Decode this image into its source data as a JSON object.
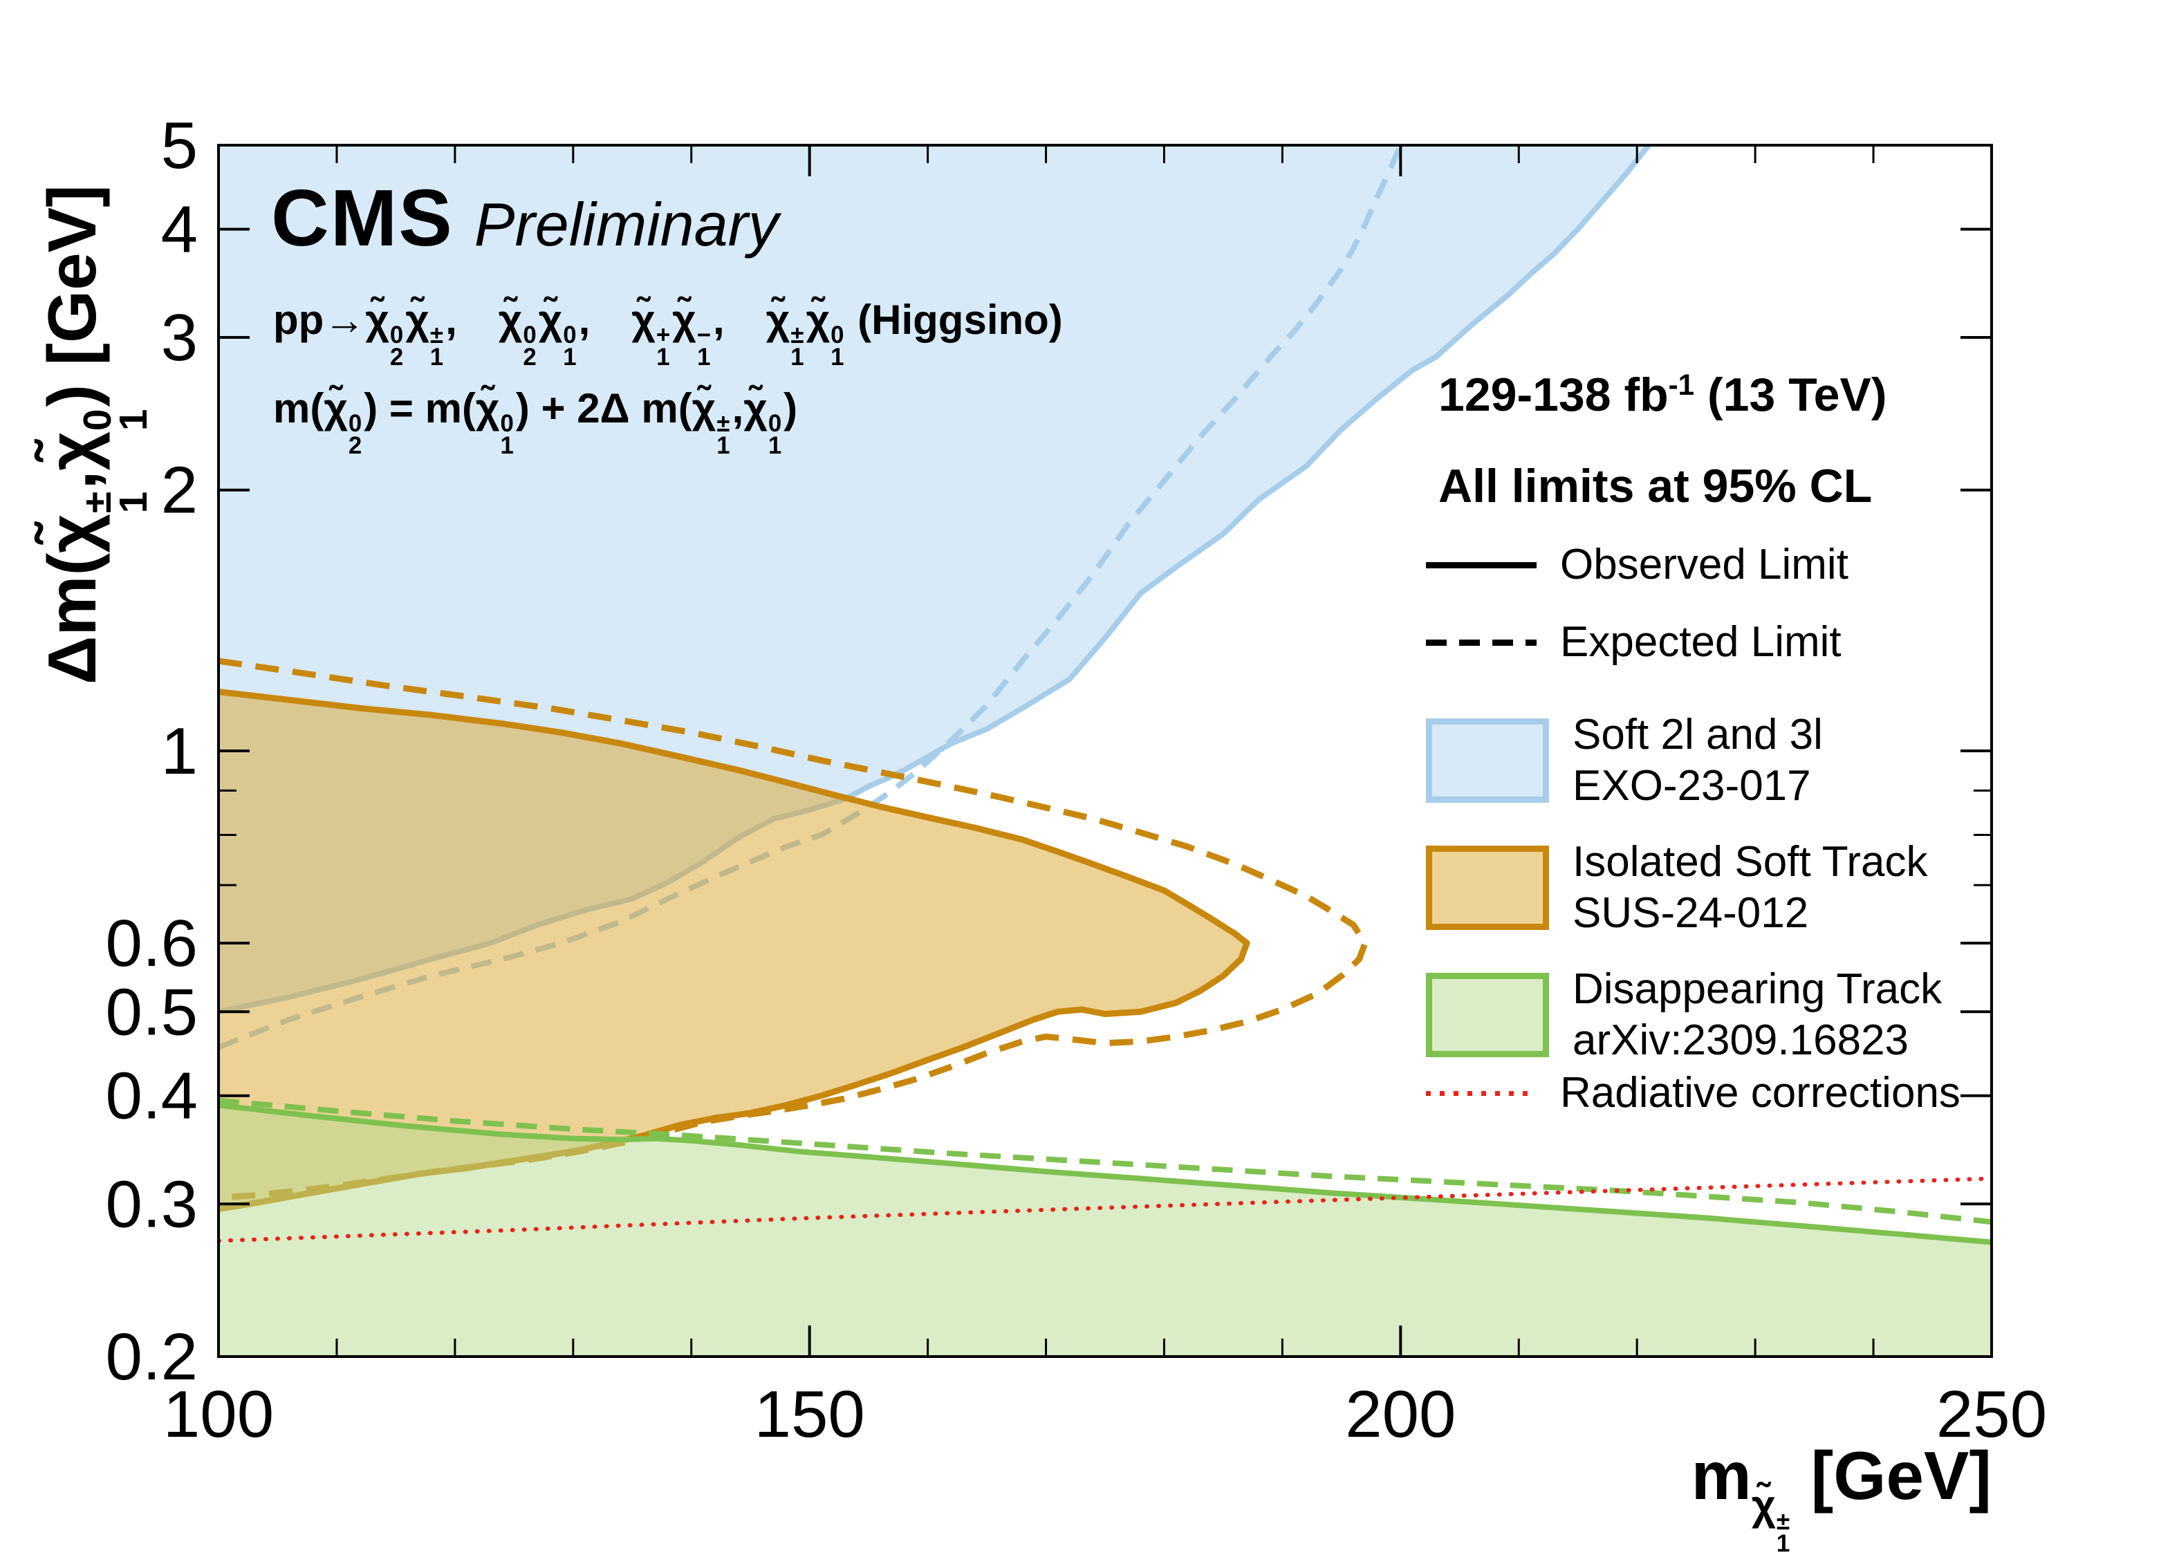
{
  "header": {
    "experiment": "CMS",
    "status": "Preliminary"
  },
  "annotations": {
    "process_html": "pp→χ̃<span class='ss'><span>0</span><span>2</span></span>χ̃<span class='ss'><span>±</span><span>1</span></span>,&#8194;&#8194;χ̃<span class='ss'><span>0</span><span>2</span></span>χ̃<span class='ss'><span>0</span><span>1</span></span>,&#8194;&#8194;χ̃<span class='ss'><span>+</span><span>1</span></span>χ̃<span class='ss'><span>−</span><span>1</span></span>,&#8194;&#8194;χ̃<span class='ss'><span>±</span><span>1</span></span>χ̃<span class='ss'><span>0</span><span>1</span></span> (Higgsino)",
    "mass_relation_html": "m(χ̃<span class='ss'><span>0</span><span>2</span></span>) = m(χ̃<span class='ss'><span>0</span><span>1</span></span>) + 2Δ m(χ̃<span class='ss'><span>±</span><span>1</span></span>,χ̃<span class='ss'><span>0</span><span>1</span></span>)",
    "lumi_html": "129-138 fb<sup>-1</sup> (13 TeV)",
    "cl_text": "All limits at 95% CL"
  },
  "axes": {
    "x_title_html": "m<span class='subg'>χ̃<span class='ss'><span>±</span><span>1</span></span></span> [GeV]",
    "y_title_html": "Δm(χ̃<span class='ss'><span>±</span><span>1</span></span>,χ̃<span class='ss'><span>0</span><span>1</span></span>) [GeV]"
  },
  "legend": {
    "observed_label": "Observed Limit",
    "expected_label": "Expected Limit",
    "entries": [
      {
        "line1": "Soft 2l and 3l",
        "line2": "EXO-23-017",
        "fill": "#d8eaf8",
        "border": "#a6cde9"
      },
      {
        "line1": "Isolated Soft Track",
        "line2": "SUS-24-012",
        "fill": "#edd296",
        "border": "#c8870d"
      },
      {
        "line1": "Disappearing Track",
        "line2": "arXiv:2309.16823",
        "fill": "#daedc6",
        "border": "#7ec14f"
      }
    ],
    "radiative_label": "Radiative corrections",
    "radiative_color": "#e8231a"
  },
  "chart_data": {
    "type": "area",
    "title": "CMS Preliminary  Higgsino exclusion limits",
    "xlabel": "m(chargino_1) [GeV]",
    "ylabel": "Delta m(chargino_1, neutralino_1) [GeV]",
    "x_range": [
      100,
      250
    ],
    "y_range": [
      0.2,
      5
    ],
    "y_scale": "log",
    "grid": false,
    "legend_position": "right",
    "x_ticks": [
      {
        "v": 100,
        "label": "100"
      },
      {
        "v": 150,
        "label": "150"
      },
      {
        "v": 200,
        "label": "200"
      },
      {
        "v": 250,
        "label": "250"
      }
    ],
    "x_minor_ticks": [
      110,
      120,
      130,
      140,
      160,
      170,
      180,
      190,
      210,
      220,
      230,
      240
    ],
    "y_ticks": [
      {
        "v": 5,
        "label": "5"
      },
      {
        "v": 4,
        "label": "4"
      },
      {
        "v": 3,
        "label": "3"
      },
      {
        "v": 2,
        "label": "2"
      },
      {
        "v": 1,
        "label": "1"
      },
      {
        "v": 0.6,
        "label": "0.6"
      },
      {
        "v": 0.5,
        "label": "0.5"
      },
      {
        "v": 0.4,
        "label": "0.4"
      },
      {
        "v": 0.3,
        "label": "0.3"
      },
      {
        "v": 0.2,
        "label": "0.2"
      }
    ],
    "y_minor_ticks": [
      0.7,
      0.8,
      0.9
    ],
    "series": [
      {
        "name": "soft-2l-3l-observed",
        "analysis": "Soft 2l and 3l (EXO-23-017)",
        "role": "observed",
        "color": "#a6cde9",
        "width": 8,
        "dash": null,
        "fill": {
          "color": "#d8eaf8",
          "opacity": 1,
          "close": [
            [
              100,
              5
            ]
          ]
        },
        "points": [
          [
            100,
            0.5
          ],
          [
            106,
            0.52
          ],
          [
            112,
            0.545
          ],
          [
            118,
            0.575
          ],
          [
            123,
            0.6
          ],
          [
            127,
            0.63
          ],
          [
            131,
            0.655
          ],
          [
            135,
            0.675
          ],
          [
            138,
            0.705
          ],
          [
            141,
            0.745
          ],
          [
            144,
            0.795
          ],
          [
            147,
            0.835
          ],
          [
            150,
            0.855
          ],
          [
            153,
            0.88
          ],
          [
            155,
            0.91
          ],
          [
            157,
            0.935
          ],
          [
            158,
            0.95
          ],
          [
            162,
            1.02
          ],
          [
            165,
            1.06
          ],
          [
            168,
            1.12
          ],
          [
            172,
            1.21
          ],
          [
            175,
            1.35
          ],
          [
            178,
            1.52
          ],
          [
            181,
            1.63
          ],
          [
            185,
            1.78
          ],
          [
            188,
            1.95
          ],
          [
            192,
            2.13
          ],
          [
            195,
            2.35
          ],
          [
            198,
            2.55
          ],
          [
            201,
            2.75
          ],
          [
            203,
            2.85
          ],
          [
            206,
            3.1
          ],
          [
            209,
            3.35
          ],
          [
            211,
            3.55
          ],
          [
            213,
            3.75
          ],
          [
            215,
            4.0
          ],
          [
            217,
            4.3
          ],
          [
            219,
            4.62
          ],
          [
            221,
            5.0
          ]
        ]
      },
      {
        "name": "soft-2l-3l-expected",
        "analysis": "Soft 2l and 3l (EXO-23-017)",
        "role": "expected",
        "color": "#a6cde9",
        "width": 8,
        "dash": "30 18",
        "fill": null,
        "points": [
          [
            100,
            0.455
          ],
          [
            106,
            0.49
          ],
          [
            112,
            0.52
          ],
          [
            118,
            0.55
          ],
          [
            124,
            0.575
          ],
          [
            129,
            0.6
          ],
          [
            134,
            0.635
          ],
          [
            138,
            0.675
          ],
          [
            142,
            0.715
          ],
          [
            145,
            0.745
          ],
          [
            148,
            0.775
          ],
          [
            151,
            0.8
          ],
          [
            153,
            0.83
          ],
          [
            155,
            0.862
          ],
          [
            157,
            0.9
          ],
          [
            159,
            0.945
          ],
          [
            161,
            1.0
          ],
          [
            163,
            1.06
          ],
          [
            165,
            1.13
          ],
          [
            168,
            1.27
          ],
          [
            171,
            1.42
          ],
          [
            174,
            1.6
          ],
          [
            177,
            1.83
          ],
          [
            180,
            2.05
          ],
          [
            183,
            2.3
          ],
          [
            186,
            2.55
          ],
          [
            189,
            2.85
          ],
          [
            191,
            3.05
          ],
          [
            193,
            3.3
          ],
          [
            195,
            3.6
          ],
          [
            196,
            3.8
          ],
          [
            197,
            4.05
          ],
          [
            198,
            4.35
          ],
          [
            199,
            4.65
          ],
          [
            200,
            5.0
          ]
        ]
      },
      {
        "name": "isolated-soft-track-observed",
        "analysis": "Isolated Soft Track (SUS-24-012)",
        "role": "observed",
        "color": "#c8870d",
        "width": 9,
        "dash": null,
        "fill": {
          "color": "#dca62e",
          "opacity": 0.5,
          "close": []
        },
        "points": [
          [
            100,
            1.17
          ],
          [
            106,
            1.145
          ],
          [
            112,
            1.12
          ],
          [
            118,
            1.1
          ],
          [
            124,
            1.075
          ],
          [
            129,
            1.05
          ],
          [
            134,
            1.02
          ],
          [
            139,
            0.985
          ],
          [
            144,
            0.95
          ],
          [
            148,
            0.92
          ],
          [
            152,
            0.89
          ],
          [
            156,
            0.862
          ],
          [
            160,
            0.838
          ],
          [
            164,
            0.815
          ],
          [
            168,
            0.79
          ],
          [
            171,
            0.765
          ],
          [
            174,
            0.74
          ],
          [
            177,
            0.715
          ],
          [
            180,
            0.69
          ],
          [
            182,
            0.665
          ],
          [
            184,
            0.64
          ],
          [
            186,
            0.615
          ],
          [
            187,
            0.6
          ],
          [
            186.5,
            0.575
          ],
          [
            185,
            0.55
          ],
          [
            183,
            0.528
          ],
          [
            181,
            0.512
          ],
          [
            178,
            0.5
          ],
          [
            175,
            0.497
          ],
          [
            173,
            0.503
          ],
          [
            171,
            0.5
          ],
          [
            169,
            0.49
          ],
          [
            166,
            0.472
          ],
          [
            163,
            0.455
          ],
          [
            160,
            0.44
          ],
          [
            157,
            0.425
          ],
          [
            154,
            0.412
          ],
          [
            151,
            0.4
          ],
          [
            148,
            0.39
          ],
          [
            145,
            0.382
          ],
          [
            142,
            0.377
          ],
          [
            139,
            0.37
          ],
          [
            136,
            0.36
          ],
          [
            133,
            0.352
          ],
          [
            130,
            0.345
          ],
          [
            127,
            0.34
          ],
          [
            124,
            0.335
          ],
          [
            121,
            0.33
          ],
          [
            117,
            0.325
          ],
          [
            113,
            0.318
          ],
          [
            109,
            0.311
          ],
          [
            105,
            0.304
          ],
          [
            102,
            0.299
          ],
          [
            100,
            0.296
          ]
        ]
      },
      {
        "name": "isolated-soft-track-expected",
        "analysis": "Isolated Soft Track (SUS-24-012)",
        "role": "expected",
        "color": "#c8870d",
        "width": 9,
        "dash": "34 20",
        "fill": null,
        "points": [
          [
            100,
            1.27
          ],
          [
            107,
            1.23
          ],
          [
            114,
            1.19
          ],
          [
            121,
            1.155
          ],
          [
            128,
            1.12
          ],
          [
            134,
            1.085
          ],
          [
            140,
            1.05
          ],
          [
            146,
            1.01
          ],
          [
            151,
            0.975
          ],
          [
            156,
            0.945
          ],
          [
            161,
            0.915
          ],
          [
            166,
            0.885
          ],
          [
            170,
            0.86
          ],
          [
            174,
            0.835
          ],
          [
            178,
            0.805
          ],
          [
            182,
            0.775
          ],
          [
            186,
            0.74
          ],
          [
            189,
            0.71
          ],
          [
            192,
            0.68
          ],
          [
            194,
            0.655
          ],
          [
            196,
            0.63
          ],
          [
            197,
            0.6
          ],
          [
            196.5,
            0.575
          ],
          [
            195,
            0.55
          ],
          [
            193,
            0.525
          ],
          [
            190,
            0.503
          ],
          [
            187,
            0.487
          ],
          [
            184,
            0.476
          ],
          [
            181,
            0.468
          ],
          [
            178,
            0.462
          ],
          [
            175,
            0.46
          ],
          [
            172,
            0.465
          ],
          [
            170,
            0.468
          ],
          [
            168,
            0.462
          ],
          [
            165,
            0.448
          ],
          [
            162,
            0.432
          ],
          [
            159,
            0.418
          ],
          [
            156,
            0.407
          ],
          [
            153,
            0.397
          ],
          [
            150,
            0.39
          ],
          [
            147,
            0.384
          ],
          [
            144,
            0.379
          ],
          [
            141,
            0.373
          ],
          [
            138,
            0.364
          ],
          [
            135,
            0.355
          ],
          [
            132,
            0.348
          ],
          [
            129,
            0.342
          ],
          [
            126,
            0.337
          ],
          [
            123,
            0.333
          ],
          [
            119,
            0.328
          ],
          [
            115,
            0.322
          ],
          [
            111,
            0.316
          ],
          [
            107,
            0.311
          ],
          [
            103,
            0.307
          ],
          [
            100,
            0.305
          ]
        ]
      },
      {
        "name": "disappearing-track-observed",
        "analysis": "Disappearing Track (arXiv:2309.16823)",
        "role": "observed",
        "color": "#7ec14f",
        "width": 8,
        "dash": null,
        "fill": {
          "color": "#b5dc8e",
          "opacity": 0.5,
          "close": [
            [
              250,
              0.2
            ],
            [
              100,
              0.2
            ]
          ]
        },
        "points": [
          [
            100,
            0.39
          ],
          [
            108,
            0.379
          ],
          [
            116,
            0.369
          ],
          [
            124,
            0.361
          ],
          [
            130,
            0.357
          ],
          [
            134,
            0.356
          ],
          [
            137,
            0.357
          ],
          [
            140,
            0.355
          ],
          [
            144,
            0.351
          ],
          [
            149,
            0.345
          ],
          [
            155,
            0.34
          ],
          [
            162,
            0.334
          ],
          [
            170,
            0.327
          ],
          [
            178,
            0.321
          ],
          [
            186,
            0.315
          ],
          [
            194,
            0.309
          ],
          [
            202,
            0.304
          ],
          [
            210,
            0.299
          ],
          [
            218,
            0.294
          ],
          [
            226,
            0.289
          ],
          [
            234,
            0.283
          ],
          [
            242,
            0.277
          ],
          [
            250,
            0.271
          ]
        ]
      },
      {
        "name": "disappearing-track-expected",
        "analysis": "Disappearing Track (arXiv:2309.16823)",
        "role": "expected",
        "color": "#7ec14f",
        "width": 8,
        "dash": "30 18",
        "fill": null,
        "points": [
          [
            100,
            0.395
          ],
          [
            110,
            0.384
          ],
          [
            120,
            0.374
          ],
          [
            130,
            0.366
          ],
          [
            138,
            0.361
          ],
          [
            146,
            0.355
          ],
          [
            154,
            0.349
          ],
          [
            162,
            0.343
          ],
          [
            170,
            0.338
          ],
          [
            178,
            0.333
          ],
          [
            186,
            0.328
          ],
          [
            194,
            0.323
          ],
          [
            202,
            0.319
          ],
          [
            210,
            0.315
          ],
          [
            218,
            0.311
          ],
          [
            226,
            0.306
          ],
          [
            234,
            0.301
          ],
          [
            242,
            0.294
          ],
          [
            250,
            0.286
          ]
        ]
      },
      {
        "name": "radiative-corrections",
        "analysis": "Radiative corrections",
        "role": "reference",
        "color": "#e8231a",
        "width": 6,
        "dash": "1 16",
        "linecap": "round",
        "fill": null,
        "points": [
          [
            100,
            0.272
          ],
          [
            125,
            0.28
          ],
          [
            150,
            0.289
          ],
          [
            175,
            0.297
          ],
          [
            200,
            0.305
          ],
          [
            225,
            0.313
          ],
          [
            250,
            0.321
          ]
        ]
      }
    ]
  }
}
